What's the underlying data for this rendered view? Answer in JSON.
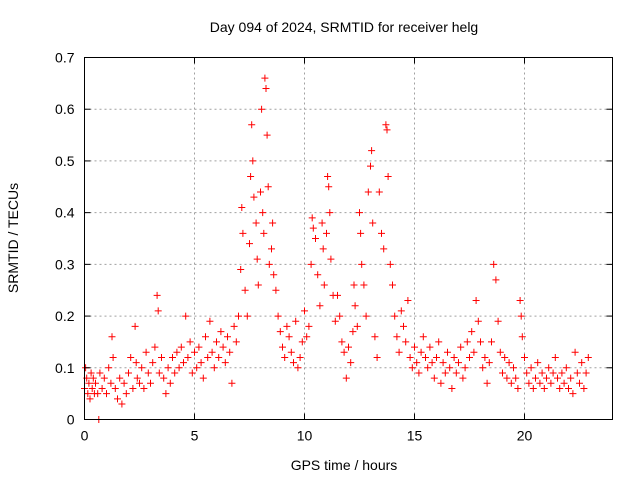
{
  "chart_data": {
    "type": "scatter",
    "title": "Day 094 of 2024, SRMTID for receiver helg",
    "xlabel": "GPS time / hours",
    "ylabel": "SRMTID / TECUs",
    "xlim": [
      0,
      24
    ],
    "ylim": [
      0,
      0.7
    ],
    "xticks": [
      0,
      5,
      10,
      15,
      20
    ],
    "xtick_labels": [
      "0",
      "5",
      "10",
      "15",
      "20"
    ],
    "yticks": [
      0,
      0.1,
      0.2,
      0.3,
      0.4,
      0.5,
      0.6,
      0.7
    ],
    "ytick_labels": [
      "0",
      "0.1",
      "0.2",
      "0.3",
      "0.4",
      "0.5",
      "0.6",
      "0.7"
    ],
    "grid": true,
    "marker": "+",
    "color": "#ff0000",
    "series": [
      {
        "name": "helg",
        "points": [
          [
            0.0,
            0.06
          ],
          [
            0.05,
            0.1
          ],
          [
            0.1,
            0.08
          ],
          [
            0.15,
            0.05
          ],
          [
            0.2,
            0.07
          ],
          [
            0.25,
            0.04
          ],
          [
            0.3,
            0.09
          ],
          [
            0.35,
            0.06
          ],
          [
            0.4,
            0.08
          ],
          [
            0.45,
            0.05
          ],
          [
            0.5,
            0.07
          ],
          [
            0.6,
            0.05
          ],
          [
            0.65,
            0.0
          ],
          [
            0.7,
            0.09
          ],
          [
            0.8,
            0.06
          ],
          [
            0.9,
            0.08
          ],
          [
            1.0,
            0.05
          ],
          [
            1.1,
            0.1
          ],
          [
            1.2,
            0.07
          ],
          [
            1.25,
            0.16
          ],
          [
            1.3,
            0.12
          ],
          [
            1.4,
            0.06
          ],
          [
            1.5,
            0.04
          ],
          [
            1.6,
            0.08
          ],
          [
            1.7,
            0.03
          ],
          [
            1.8,
            0.07
          ],
          [
            1.9,
            0.05
          ],
          [
            2.0,
            0.09
          ],
          [
            2.1,
            0.12
          ],
          [
            2.2,
            0.06
          ],
          [
            2.3,
            0.18
          ],
          [
            2.35,
            0.11
          ],
          [
            2.4,
            0.08
          ],
          [
            2.5,
            0.07
          ],
          [
            2.6,
            0.1
          ],
          [
            2.7,
            0.06
          ],
          [
            2.8,
            0.13
          ],
          [
            2.9,
            0.09
          ],
          [
            3.0,
            0.07
          ],
          [
            3.1,
            0.11
          ],
          [
            3.2,
            0.14
          ],
          [
            3.3,
            0.24
          ],
          [
            3.35,
            0.21
          ],
          [
            3.4,
            0.09
          ],
          [
            3.5,
            0.12
          ],
          [
            3.6,
            0.08
          ],
          [
            3.7,
            0.05
          ],
          [
            3.8,
            0.1
          ],
          [
            3.9,
            0.07
          ],
          [
            4.0,
            0.12
          ],
          [
            4.1,
            0.09
          ],
          [
            4.2,
            0.13
          ],
          [
            4.3,
            0.1
          ],
          [
            4.4,
            0.14
          ],
          [
            4.5,
            0.11
          ],
          [
            4.6,
            0.2
          ],
          [
            4.7,
            0.12
          ],
          [
            4.8,
            0.15
          ],
          [
            4.9,
            0.09
          ],
          [
            5.0,
            0.13
          ],
          [
            5.1,
            0.1
          ],
          [
            5.2,
            0.14
          ],
          [
            5.3,
            0.11
          ],
          [
            5.4,
            0.08
          ],
          [
            5.5,
            0.16
          ],
          [
            5.6,
            0.12
          ],
          [
            5.7,
            0.19
          ],
          [
            5.8,
            0.13
          ],
          [
            5.9,
            0.1
          ],
          [
            6.0,
            0.15
          ],
          [
            6.1,
            0.12
          ],
          [
            6.2,
            0.17
          ],
          [
            6.3,
            0.14
          ],
          [
            6.4,
            0.11
          ],
          [
            6.5,
            0.16
          ],
          [
            6.6,
            0.13
          ],
          [
            6.7,
            0.07
          ],
          [
            6.8,
            0.18
          ],
          [
            6.9,
            0.15
          ],
          [
            7.0,
            0.2
          ],
          [
            7.1,
            0.29
          ],
          [
            7.15,
            0.41
          ],
          [
            7.2,
            0.36
          ],
          [
            7.3,
            0.25
          ],
          [
            7.4,
            0.2
          ],
          [
            7.5,
            0.34
          ],
          [
            7.55,
            0.47
          ],
          [
            7.6,
            0.57
          ],
          [
            7.65,
            0.5
          ],
          [
            7.7,
            0.43
          ],
          [
            7.8,
            0.38
          ],
          [
            7.85,
            0.31
          ],
          [
            7.9,
            0.26
          ],
          [
            8.0,
            0.44
          ],
          [
            8.05,
            0.6
          ],
          [
            8.1,
            0.4
          ],
          [
            8.15,
            0.36
          ],
          [
            8.2,
            0.66
          ],
          [
            8.25,
            0.64
          ],
          [
            8.3,
            0.55
          ],
          [
            8.35,
            0.45
          ],
          [
            8.4,
            0.3
          ],
          [
            8.5,
            0.33
          ],
          [
            8.55,
            0.38
          ],
          [
            8.6,
            0.28
          ],
          [
            8.7,
            0.25
          ],
          [
            8.8,
            0.2
          ],
          [
            8.9,
            0.17
          ],
          [
            9.0,
            0.14
          ],
          [
            9.1,
            0.12
          ],
          [
            9.2,
            0.18
          ],
          [
            9.3,
            0.16
          ],
          [
            9.4,
            0.13
          ],
          [
            9.5,
            0.11
          ],
          [
            9.6,
            0.19
          ],
          [
            9.7,
            0.1
          ],
          [
            9.8,
            0.12
          ],
          [
            9.9,
            0.15
          ],
          [
            10.0,
            0.21
          ],
          [
            10.1,
            0.16
          ],
          [
            10.2,
            0.18
          ],
          [
            10.3,
            0.3
          ],
          [
            10.35,
            0.39
          ],
          [
            10.4,
            0.37
          ],
          [
            10.5,
            0.35
          ],
          [
            10.6,
            0.28
          ],
          [
            10.7,
            0.22
          ],
          [
            10.8,
            0.38
          ],
          [
            10.85,
            0.33
          ],
          [
            10.9,
            0.26
          ],
          [
            11.0,
            0.36
          ],
          [
            11.05,
            0.47
          ],
          [
            11.1,
            0.45
          ],
          [
            11.15,
            0.4
          ],
          [
            11.2,
            0.31
          ],
          [
            11.3,
            0.24
          ],
          [
            11.4,
            0.19
          ],
          [
            11.5,
            0.24
          ],
          [
            11.6,
            0.2
          ],
          [
            11.7,
            0.15
          ],
          [
            11.8,
            0.13
          ],
          [
            11.9,
            0.08
          ],
          [
            12.0,
            0.14
          ],
          [
            12.1,
            0.11
          ],
          [
            12.2,
            0.17
          ],
          [
            12.25,
            0.26
          ],
          [
            12.3,
            0.22
          ],
          [
            12.4,
            0.18
          ],
          [
            12.5,
            0.4
          ],
          [
            12.55,
            0.36
          ],
          [
            12.6,
            0.3
          ],
          [
            12.7,
            0.26
          ],
          [
            12.8,
            0.2
          ],
          [
            12.9,
            0.44
          ],
          [
            13.0,
            0.49
          ],
          [
            13.05,
            0.52
          ],
          [
            13.1,
            0.38
          ],
          [
            13.2,
            0.16
          ],
          [
            13.3,
            0.12
          ],
          [
            13.4,
            0.44
          ],
          [
            13.5,
            0.36
          ],
          [
            13.6,
            0.33
          ],
          [
            13.7,
            0.57
          ],
          [
            13.75,
            0.56
          ],
          [
            13.8,
            0.47
          ],
          [
            13.9,
            0.3
          ],
          [
            14.0,
            0.26
          ],
          [
            14.1,
            0.2
          ],
          [
            14.2,
            0.16
          ],
          [
            14.3,
            0.13
          ],
          [
            14.4,
            0.21
          ],
          [
            14.5,
            0.18
          ],
          [
            14.6,
            0.15
          ],
          [
            14.7,
            0.23
          ],
          [
            14.8,
            0.12
          ],
          [
            14.9,
            0.1
          ],
          [
            15.0,
            0.14
          ],
          [
            15.1,
            0.11
          ],
          [
            15.2,
            0.09
          ],
          [
            15.3,
            0.13
          ],
          [
            15.4,
            0.16
          ],
          [
            15.5,
            0.12
          ],
          [
            15.6,
            0.1
          ],
          [
            15.7,
            0.14
          ],
          [
            15.8,
            0.11
          ],
          [
            15.9,
            0.08
          ],
          [
            16.0,
            0.12
          ],
          [
            16.1,
            0.15
          ],
          [
            16.2,
            0.07
          ],
          [
            16.3,
            0.11
          ],
          [
            16.4,
            0.09
          ],
          [
            16.5,
            0.13
          ],
          [
            16.6,
            0.1
          ],
          [
            16.7,
            0.06
          ],
          [
            16.8,
            0.12
          ],
          [
            16.9,
            0.09
          ],
          [
            17.0,
            0.11
          ],
          [
            17.1,
            0.14
          ],
          [
            17.2,
            0.08
          ],
          [
            17.3,
            0.1
          ],
          [
            17.4,
            0.15
          ],
          [
            17.5,
            0.12
          ],
          [
            17.6,
            0.17
          ],
          [
            17.7,
            0.13
          ],
          [
            17.8,
            0.23
          ],
          [
            17.9,
            0.19
          ],
          [
            18.0,
            0.15
          ],
          [
            18.1,
            0.1
          ],
          [
            18.2,
            0.12
          ],
          [
            18.3,
            0.07
          ],
          [
            18.4,
            0.11
          ],
          [
            18.5,
            0.15
          ],
          [
            18.6,
            0.3
          ],
          [
            18.7,
            0.27
          ],
          [
            18.8,
            0.19
          ],
          [
            18.9,
            0.13
          ],
          [
            19.0,
            0.09
          ],
          [
            19.1,
            0.12
          ],
          [
            19.2,
            0.08
          ],
          [
            19.3,
            0.11
          ],
          [
            19.4,
            0.07
          ],
          [
            19.5,
            0.1
          ],
          [
            19.6,
            0.08
          ],
          [
            19.7,
            0.06
          ],
          [
            19.8,
            0.23
          ],
          [
            19.85,
            0.2
          ],
          [
            19.9,
            0.16
          ],
          [
            20.0,
            0.12
          ],
          [
            20.1,
            0.09
          ],
          [
            20.2,
            0.07
          ],
          [
            20.3,
            0.1
          ],
          [
            20.4,
            0.06
          ],
          [
            20.5,
            0.08
          ],
          [
            20.6,
            0.11
          ],
          [
            20.7,
            0.07
          ],
          [
            20.8,
            0.09
          ],
          [
            20.9,
            0.06
          ],
          [
            21.0,
            0.08
          ],
          [
            21.1,
            0.1
          ],
          [
            21.2,
            0.07
          ],
          [
            21.3,
            0.09
          ],
          [
            21.4,
            0.12
          ],
          [
            21.5,
            0.08
          ],
          [
            21.6,
            0.06
          ],
          [
            21.7,
            0.09
          ],
          [
            21.8,
            0.07
          ],
          [
            21.9,
            0.1
          ],
          [
            22.0,
            0.06
          ],
          [
            22.1,
            0.08
          ],
          [
            22.2,
            0.05
          ],
          [
            22.3,
            0.13
          ],
          [
            22.4,
            0.09
          ],
          [
            22.5,
            0.07
          ],
          [
            22.6,
            0.11
          ],
          [
            22.7,
            0.06
          ],
          [
            22.8,
            0.09
          ],
          [
            22.9,
            0.12
          ]
        ]
      }
    ]
  }
}
